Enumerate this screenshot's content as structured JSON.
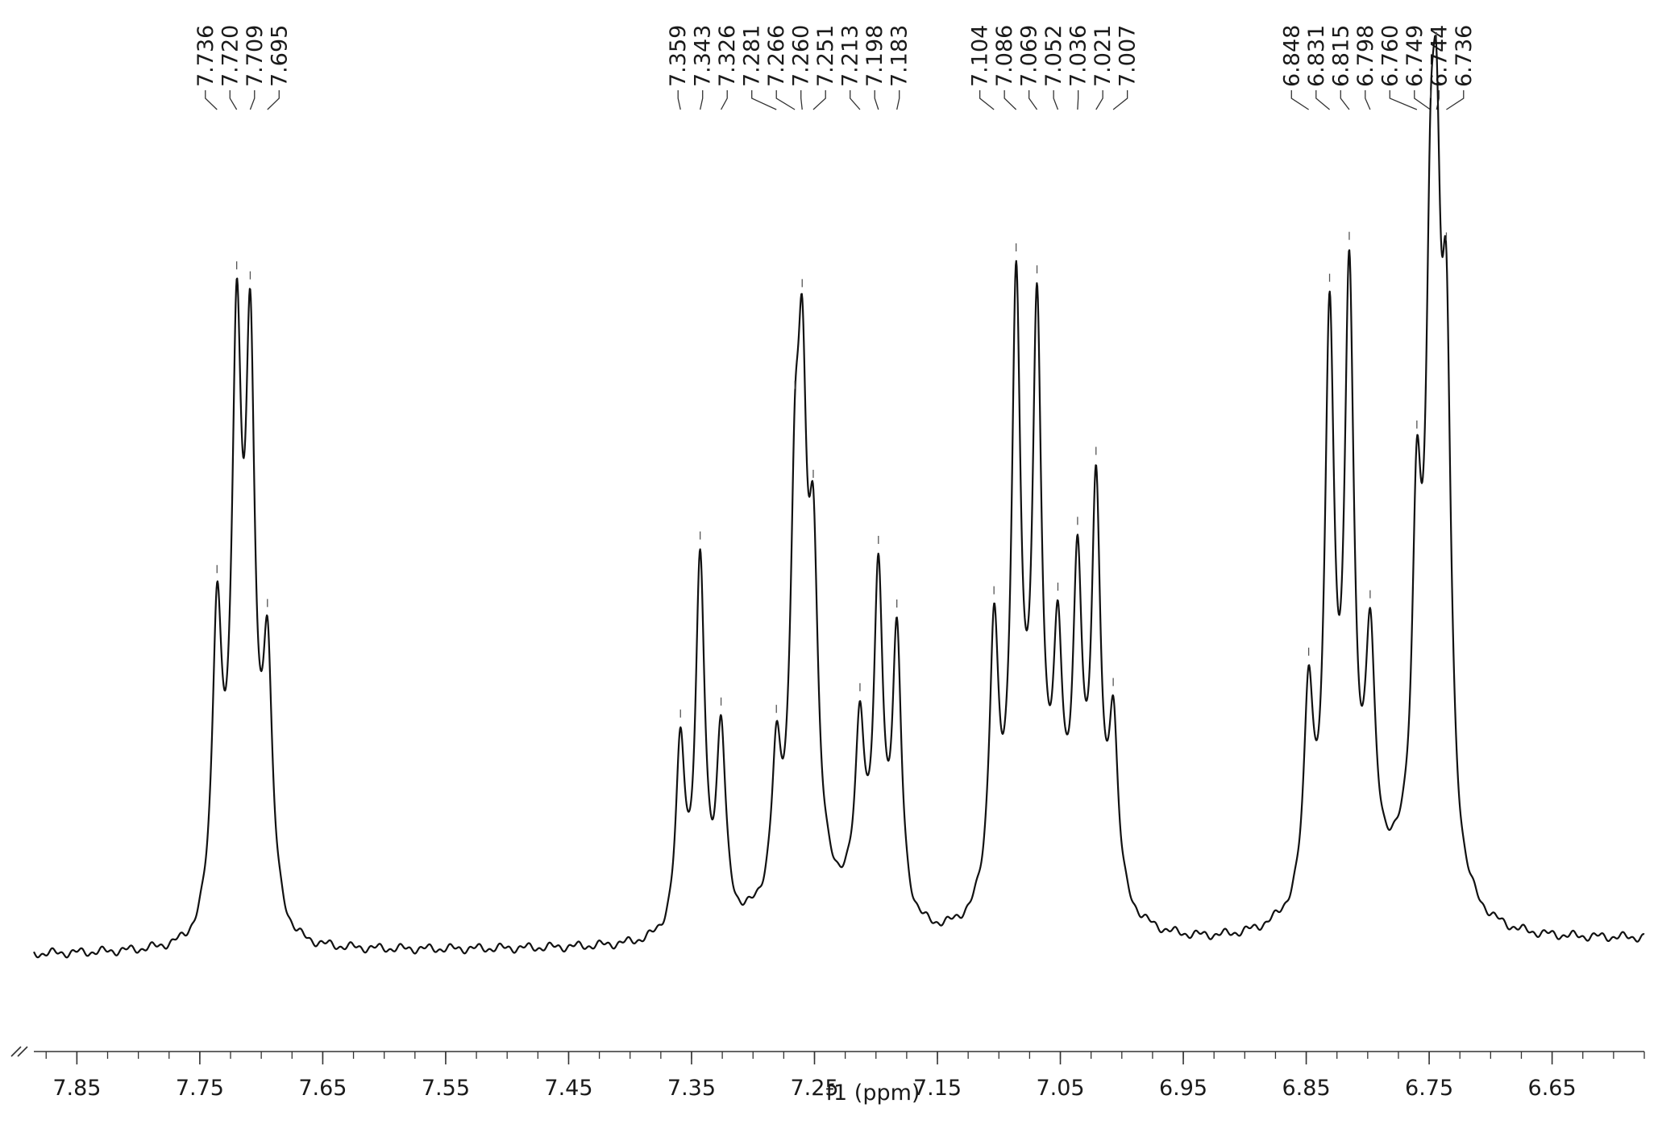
{
  "chart_data": {
    "type": "line",
    "title": "",
    "xlabel": "f1 (ppm)",
    "ylabel": "",
    "x_reversed": true,
    "xlim": [
      7.885,
      6.575
    ],
    "ylim": [
      0,
      1.0
    ],
    "grid": false,
    "x_ticks": [
      {
        "value": 7.85,
        "label": "7.85"
      },
      {
        "value": 7.75,
        "label": "7.75"
      },
      {
        "value": 7.65,
        "label": "7.65"
      },
      {
        "value": 7.55,
        "label": "7.55"
      },
      {
        "value": 7.45,
        "label": "7.45"
      },
      {
        "value": 7.35,
        "label": "7.35"
      },
      {
        "value": 7.25,
        "label": "7.25"
      },
      {
        "value": 7.15,
        "label": "7.15"
      },
      {
        "value": 7.05,
        "label": "7.05"
      },
      {
        "value": 6.95,
        "label": "6.95"
      },
      {
        "value": 6.85,
        "label": "6.85"
      },
      {
        "value": 6.75,
        "label": "6.75"
      },
      {
        "value": 6.65,
        "label": "6.65"
      }
    ],
    "peak_labels": [
      {
        "label": "7.736",
        "value": 7.736
      },
      {
        "label": "7.720",
        "value": 7.72
      },
      {
        "label": "7.709",
        "value": 7.709
      },
      {
        "label": "7.695",
        "value": 7.695
      },
      {
        "label": "7.359",
        "value": 7.359
      },
      {
        "label": "7.343",
        "value": 7.343
      },
      {
        "label": "7.326",
        "value": 7.326
      },
      {
        "label": "7.281",
        "value": 7.281
      },
      {
        "label": "7.266",
        "value": 7.266
      },
      {
        "label": "7.260",
        "value": 7.26
      },
      {
        "label": "7.251",
        "value": 7.251
      },
      {
        "label": "7.213",
        "value": 7.213
      },
      {
        "label": "7.198",
        "value": 7.198
      },
      {
        "label": "7.183",
        "value": 7.183
      },
      {
        "label": "7.104",
        "value": 7.104
      },
      {
        "label": "7.086",
        "value": 7.086
      },
      {
        "label": "7.069",
        "value": 7.069
      },
      {
        "label": "7.052",
        "value": 7.052
      },
      {
        "label": "7.036",
        "value": 7.036
      },
      {
        "label": "7.021",
        "value": 7.021
      },
      {
        "label": "7.007",
        "value": 7.007
      },
      {
        "label": "6.848",
        "value": 6.848
      },
      {
        "label": "6.831",
        "value": 6.831
      },
      {
        "label": "6.815",
        "value": 6.815
      },
      {
        "label": "6.798",
        "value": 6.798
      },
      {
        "label": "6.760",
        "value": 6.76
      },
      {
        "label": "6.749",
        "value": 6.749
      },
      {
        "label": "6.744",
        "value": 6.744
      },
      {
        "label": "6.736",
        "value": 6.736
      }
    ],
    "series": [
      {
        "line_color": "#111111",
        "baseline": 0.0,
        "peaks": [
          {
            "ppm": 7.736,
            "height": 0.41,
            "width": 0.0045
          },
          {
            "ppm": 7.72,
            "height": 0.72,
            "width": 0.0045
          },
          {
            "ppm": 7.709,
            "height": 0.69,
            "width": 0.0045
          },
          {
            "ppm": 7.695,
            "height": 0.34,
            "width": 0.0045
          },
          {
            "ppm": 7.359,
            "height": 0.26,
            "width": 0.0045
          },
          {
            "ppm": 7.343,
            "height": 0.51,
            "width": 0.0045
          },
          {
            "ppm": 7.326,
            "height": 0.27,
            "width": 0.0045
          },
          {
            "ppm": 7.281,
            "height": 0.19,
            "width": 0.0045
          },
          {
            "ppm": 7.266,
            "height": 0.45,
            "width": 0.0045
          },
          {
            "ppm": 7.26,
            "height": 0.6,
            "width": 0.0045
          },
          {
            "ppm": 7.251,
            "height": 0.43,
            "width": 0.0045
          },
          {
            "ppm": 7.213,
            "height": 0.25,
            "width": 0.0045
          },
          {
            "ppm": 7.198,
            "height": 0.46,
            "width": 0.0045
          },
          {
            "ppm": 7.183,
            "height": 0.39,
            "width": 0.0045
          },
          {
            "ppm": 7.104,
            "height": 0.38,
            "width": 0.0045
          },
          {
            "ppm": 7.086,
            "height": 0.83,
            "width": 0.0045
          },
          {
            "ppm": 7.069,
            "height": 0.78,
            "width": 0.0045
          },
          {
            "ppm": 7.052,
            "height": 0.31,
            "width": 0.0045
          },
          {
            "ppm": 7.036,
            "height": 0.42,
            "width": 0.0045
          },
          {
            "ppm": 7.021,
            "height": 0.55,
            "width": 0.0045
          },
          {
            "ppm": 7.007,
            "height": 0.25,
            "width": 0.0045
          },
          {
            "ppm": 6.848,
            "height": 0.29,
            "width": 0.0045
          },
          {
            "ppm": 6.831,
            "height": 0.78,
            "width": 0.0045
          },
          {
            "ppm": 6.815,
            "height": 0.82,
            "width": 0.0045
          },
          {
            "ppm": 6.798,
            "height": 0.31,
            "width": 0.0045
          },
          {
            "ppm": 6.76,
            "height": 0.47,
            "width": 0.0045
          },
          {
            "ppm": 6.749,
            "height": 0.66,
            "width": 0.0045
          },
          {
            "ppm": 6.744,
            "height": 0.72,
            "width": 0.0045
          },
          {
            "ppm": 6.736,
            "height": 0.67,
            "width": 0.0045
          }
        ]
      }
    ]
  }
}
